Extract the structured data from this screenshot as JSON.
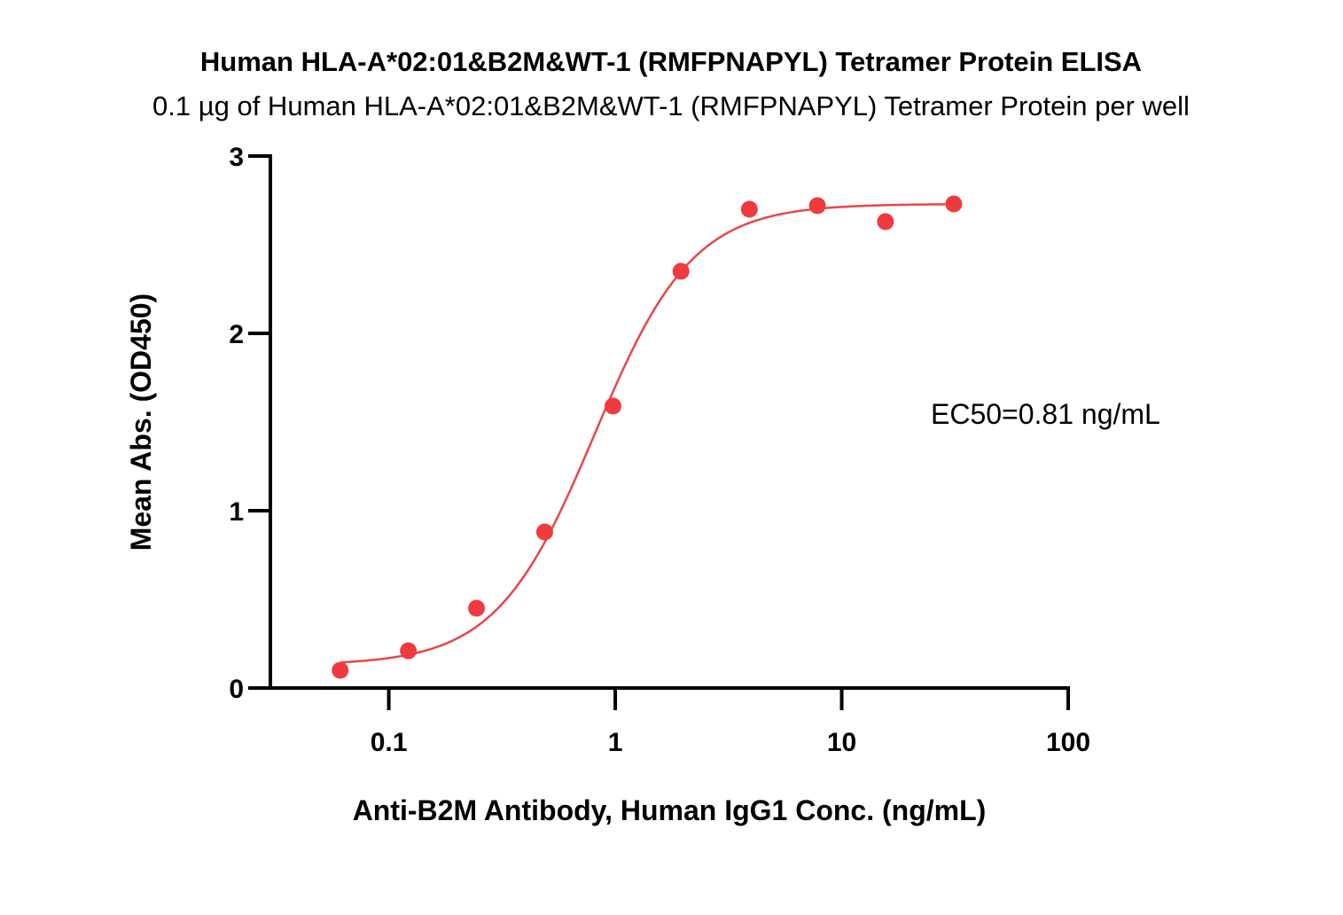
{
  "chart_data": {
    "type": "scatter",
    "title": "Human HLA-A*02:01&B2M&WT-1 (RMFPNAPYL) Tetramer Protein ELISA",
    "subtitle": "0.1 µg of Human HLA-A*02:01&B2M&WT-1 (RMFPNAPYL) Tetramer Protein per well",
    "xlabel": "Anti-B2M Antibody, Human IgG1 Conc. (ng/mL)",
    "ylabel": "Mean Abs. (OD450)",
    "x_scale": "log",
    "xlim": [
      0.03,
      100
    ],
    "ylim": [
      0,
      3
    ],
    "x_ticks": [
      0.1,
      1,
      10,
      100
    ],
    "x_tick_labels": [
      "0.1",
      "1",
      "10",
      "100"
    ],
    "y_ticks": [
      0,
      1,
      2,
      3
    ],
    "y_tick_labels": [
      "0",
      "1",
      "2",
      "3"
    ],
    "grid": false,
    "series": [
      {
        "color": "#ef3b3f",
        "x": [
          0.061,
          0.122,
          0.244,
          0.488,
          0.977,
          1.95,
          3.91,
          7.81,
          15.6,
          31.25
        ],
        "y": [
          0.1,
          0.21,
          0.45,
          0.88,
          1.59,
          2.35,
          2.7,
          2.72,
          2.63,
          2.73
        ]
      }
    ],
    "fit": {
      "type": "4PL",
      "color": "#e8464a",
      "bottom": 0.13,
      "top": 2.73,
      "ec50": 0.81,
      "hill": 2.0,
      "x_range": [
        0.061,
        31.25
      ]
    },
    "annotation": "EC50=0.81 ng/mL"
  }
}
